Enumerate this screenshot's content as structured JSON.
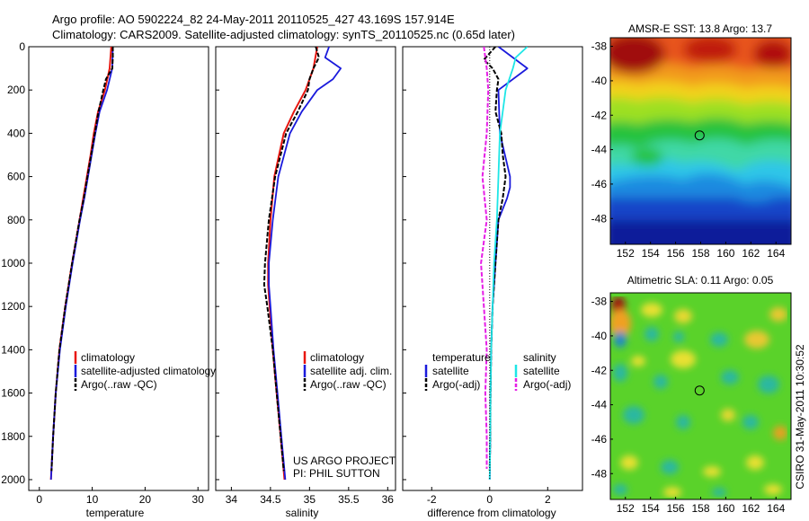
{
  "figure": {
    "title_line1": "Argo profile: AO 5902224_82 24-May-2011 20110525_427 43.169S 157.914E",
    "title_line2": "Climatology: CARS2009. Satellite-adjusted climatology: synTS_20110525.nc (0.65d later)",
    "credit": "CSIRO 31-May-2011 10:30:52",
    "project_line1": "US ARGO PROJECT",
    "project_line2": "PI: PHIL SUTTON"
  },
  "colors": {
    "climatology": "#e8160f",
    "satellite": "#1a1adc",
    "argo": "#000000",
    "salinity_satellite": "#1ee6e6",
    "salinity_argo": "#e61ee6"
  },
  "chart_data": [
    {
      "type": "line",
      "id": "temperature",
      "xlabel": "temperature",
      "ylabel": "",
      "xlim": [
        -2,
        32
      ],
      "ylim": [
        2050,
        0
      ],
      "xticks": [
        "0",
        "10",
        "20",
        "30"
      ],
      "yticks": [
        "0",
        "200",
        "400",
        "600",
        "800",
        "1000",
        "1200",
        "1400",
        "1600",
        "1800",
        "2000"
      ],
      "legend": [
        "climatology",
        "satellite-adjusted climatology",
        "Argo(..raw -QC)"
      ],
      "series": [
        {
          "name": "climatology",
          "y": [
            0,
            100,
            200,
            300,
            400,
            500,
            600,
            700,
            800,
            1000,
            1200,
            1400,
            1600,
            1800,
            2000
          ],
          "x": [
            13.6,
            13.3,
            12.4,
            11.1,
            10.3,
            9.7,
            9.0,
            8.3,
            7.6,
            6.2,
            4.9,
            3.8,
            3.1,
            2.6,
            2.2
          ]
        },
        {
          "name": "satellite-adjusted climatology",
          "y": [
            0,
            100,
            200,
            300,
            400,
            500,
            600,
            700,
            800,
            1000,
            1200,
            1400,
            1600,
            1800,
            2000
          ],
          "x": [
            13.9,
            13.8,
            12.8,
            11.4,
            10.6,
            9.9,
            9.2,
            8.5,
            7.7,
            6.3,
            5.0,
            3.9,
            3.1,
            2.6,
            2.2
          ]
        },
        {
          "name": "Argo(..raw -QC)",
          "y": [
            0,
            50,
            100,
            150,
            200,
            300,
            400,
            500,
            600,
            700,
            800,
            1000,
            1200,
            1400,
            1600,
            1800,
            1960
          ],
          "x": [
            13.9,
            13.9,
            13.8,
            12.6,
            12.1,
            11.2,
            10.5,
            9.8,
            9.1,
            8.4,
            7.6,
            6.2,
            4.9,
            3.8,
            3.1,
            2.6,
            2.3
          ]
        }
      ]
    },
    {
      "type": "line",
      "id": "salinity",
      "xlabel": "salinity",
      "xlim": [
        33.8,
        36.1
      ],
      "ylim": [
        2050,
        0
      ],
      "xticks": [
        "34",
        "34.5",
        "35",
        "35.5",
        "36"
      ],
      "legend": [
        "climatology",
        "satellite adj. clim.",
        "Argo(..raw -QC)"
      ],
      "series": [
        {
          "name": "climatology",
          "y": [
            0,
            100,
            200,
            300,
            400,
            600,
            800,
            1000,
            1100,
            1200,
            1400,
            1600,
            1800,
            2000
          ],
          "x": [
            35.1,
            35.05,
            34.95,
            34.8,
            34.67,
            34.55,
            34.5,
            34.47,
            34.47,
            34.49,
            34.53,
            34.58,
            34.63,
            34.68
          ]
        },
        {
          "name": "satellite adj. clim.",
          "y": [
            0,
            50,
            100,
            150,
            200,
            300,
            400,
            600,
            800,
            1000,
            1100,
            1200,
            1400,
            1600,
            1800,
            2000
          ],
          "x": [
            35.25,
            35.2,
            35.4,
            35.3,
            35.1,
            34.9,
            34.75,
            34.6,
            34.53,
            34.48,
            34.48,
            34.5,
            34.54,
            34.59,
            34.64,
            34.69
          ]
        },
        {
          "name": "Argo(..raw -QC)",
          "y": [
            0,
            50,
            100,
            150,
            200,
            300,
            400,
            600,
            800,
            1000,
            1100,
            1200,
            1400,
            1600,
            1800,
            1960
          ],
          "x": [
            35.08,
            35.12,
            35.05,
            35.0,
            34.98,
            34.85,
            34.7,
            34.56,
            34.48,
            34.43,
            34.42,
            34.46,
            34.53,
            34.58,
            34.63,
            34.67
          ]
        }
      ]
    },
    {
      "type": "line",
      "id": "difference",
      "xlabel": "difference from climatology",
      "xlim": [
        -3,
        3.2
      ],
      "ylim": [
        2050,
        0
      ],
      "xticks": [
        "-2",
        "0",
        "2"
      ],
      "legend_groups": [
        {
          "heading": "temperature",
          "entries": [
            "satellite",
            "Argo(-adj)"
          ]
        },
        {
          "heading": "salinity",
          "entries": [
            "satellite",
            "Argo(-adj)"
          ]
        }
      ],
      "series": [
        {
          "name": "temperature satellite",
          "y": [
            0,
            100,
            200,
            400,
            600,
            650,
            700,
            800,
            1000,
            1200,
            1400,
            1600,
            1800,
            2000
          ],
          "x": [
            0.3,
            1.3,
            0.3,
            0.35,
            0.7,
            0.7,
            0.6,
            0.3,
            0.2,
            0.1,
            0.05,
            0.03,
            0.02,
            0.0
          ]
        },
        {
          "name": "temperature Argo(-adj)",
          "y": [
            0,
            60,
            100,
            150,
            200,
            300,
            400,
            500,
            600,
            700,
            800,
            1000,
            1200,
            1400,
            1600,
            1800,
            1960
          ],
          "x": [
            0.2,
            -0.2,
            0.1,
            0.3,
            0.25,
            0.2,
            0.4,
            0.45,
            0.55,
            0.45,
            0.3,
            0.2,
            0.1,
            0.05,
            0.03,
            0.02,
            0.0
          ]
        },
        {
          "name": "salinity satellite",
          "y": [
            0,
            50,
            100,
            200,
            400,
            600,
            800,
            1000,
            1200,
            1400,
            1600,
            1800,
            2000
          ],
          "x": [
            1.3,
            0.9,
            0.8,
            0.55,
            0.35,
            0.3,
            0.25,
            0.15,
            0.1,
            0.05,
            0.03,
            0.02,
            0.0
          ]
        },
        {
          "name": "salinity Argo(-adj)",
          "y": [
            0,
            100,
            200,
            400,
            600,
            800,
            1000,
            1200,
            1400,
            1600,
            1800,
            1950
          ],
          "x": [
            -0.2,
            -0.1,
            -0.05,
            -0.1,
            -0.25,
            -0.1,
            -0.3,
            -0.2,
            -0.1,
            -0.15,
            -0.1,
            -0.1
          ]
        },
        {
          "name": "zero line",
          "y": [
            0,
            2000
          ],
          "x": [
            0,
            0
          ]
        }
      ]
    },
    {
      "type": "heatmap",
      "id": "sst_map",
      "title": "AMSR-E SST: 13.8 Argo: 13.7",
      "xlim": [
        150.8,
        165.2
      ],
      "ylim": [
        -49.5,
        -37.5
      ],
      "xticks": [
        "152",
        "154",
        "156",
        "158",
        "160",
        "162",
        "164"
      ],
      "yticks": [
        "-38",
        "-40",
        "-42",
        "-44",
        "-46",
        "-48"
      ],
      "marker": {
        "lon": 157.914,
        "lat": -43.169
      },
      "field": "sea surface temperature, warm (red) in north to cold (dark blue) in south"
    },
    {
      "type": "heatmap",
      "id": "sla_map",
      "title": "Altimetric SLA: 0.11 Argo: 0.05",
      "xlim": [
        150.8,
        165.2
      ],
      "ylim": [
        -49.5,
        -37.5
      ],
      "xticks": [
        "152",
        "154",
        "156",
        "158",
        "160",
        "162",
        "164"
      ],
      "yticks": [
        "-38",
        "-40",
        "-42",
        "-44",
        "-46",
        "-48"
      ],
      "marker": {
        "lon": 157.914,
        "lat": -43.169
      },
      "field": "sea level anomaly, mostly green with scattered eddies"
    }
  ]
}
